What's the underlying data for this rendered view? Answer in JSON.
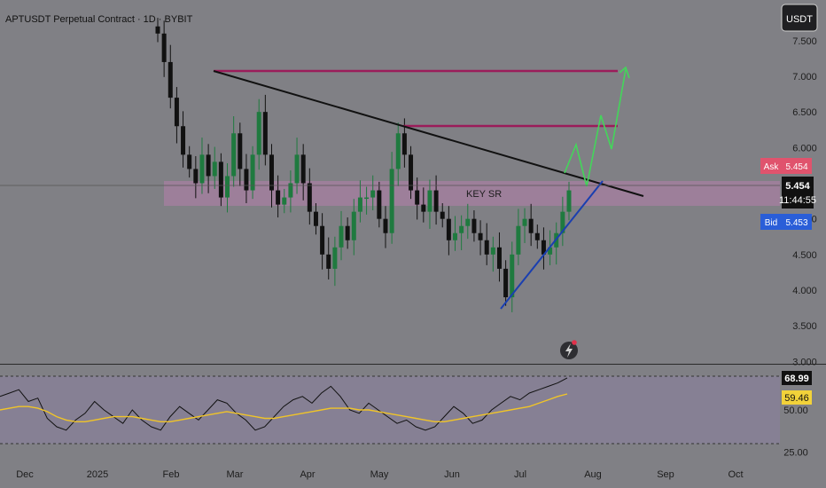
{
  "chart_data": {
    "type": "candlestick",
    "title": "APTUSDT Perpetual Contract · 1D · BYBIT",
    "currency_button": "USDT",
    "y_ticks": [
      "7.500",
      "7.000",
      "6.500",
      "6.000",
      "5.000",
      "4.500",
      "4.000",
      "3.500",
      "3.000"
    ],
    "x_ticks": [
      "Dec",
      "2025",
      "Feb",
      "Mar",
      "Apr",
      "May",
      "Jun",
      "Jul",
      "Aug",
      "Sep",
      "Oct"
    ],
    "price_range": [
      2.95,
      7.7
    ],
    "last_price": "5.454",
    "countdown": "11:44:55",
    "ask": {
      "label": "Ask",
      "value": "5.454"
    },
    "bid": {
      "label": "Bid",
      "value": "5.453"
    },
    "zone_label": "KEY SR",
    "zone": [
      5.05,
      5.4
    ],
    "resistance_levels": [
      7.05,
      6.28
    ],
    "descending_trendline": {
      "from": [
        7.05
      ],
      "to": [
        5.1
      ]
    },
    "rising_trendline": {
      "from": [
        3.75
      ],
      "to": [
        5.45
      ]
    },
    "closes": [
      7.6,
      7.2,
      6.7,
      6.3,
      5.9,
      5.7,
      5.5,
      5.9,
      5.6,
      5.8,
      5.3,
      5.6,
      6.2,
      5.7,
      5.4,
      5.9,
      6.5,
      5.9,
      5.4,
      5.2,
      5.3,
      5.5,
      5.9,
      5.5,
      5.1,
      4.9,
      4.5,
      4.3,
      4.6,
      4.9,
      4.7,
      5.1,
      5.3,
      5.3,
      5.4,
      5.0,
      4.8,
      5.7,
      6.2,
      5.9,
      5.4,
      5.2,
      5.1,
      5.4,
      5.1,
      5.0,
      4.7,
      4.8,
      4.9,
      5.0,
      4.8,
      4.7,
      4.5,
      4.6,
      4.3,
      3.9,
      4.5,
      4.9,
      5.0,
      4.8,
      4.7,
      4.5,
      4.6,
      4.8,
      5.1,
      5.4
    ],
    "rsi": {
      "ticks": [
        "25.00",
        "50.00"
      ],
      "value": "68.99",
      "ma_value": "59.46",
      "levels": [
        70,
        30
      ],
      "range": [
        20,
        80
      ],
      "values": [
        58,
        60,
        62,
        55,
        57,
        45,
        40,
        38,
        44,
        48,
        55,
        50,
        46,
        42,
        50,
        44,
        40,
        38,
        46,
        52,
        48,
        44,
        50,
        56,
        54,
        48,
        44,
        38,
        40,
        46,
        52,
        56,
        58,
        54,
        60,
        64,
        58,
        50,
        48,
        54,
        50,
        46,
        42,
        44,
        40,
        38,
        40,
        46,
        52,
        48,
        42,
        44,
        50,
        54,
        58,
        56,
        60,
        62,
        64,
        66,
        68.99
      ],
      "ma": [
        50,
        51,
        52,
        52,
        51,
        49,
        46,
        44,
        43,
        43,
        44,
        45,
        46,
        46,
        46,
        45,
        44,
        43,
        43,
        44,
        45,
        46,
        47,
        48,
        49,
        48,
        47,
        46,
        45,
        45,
        46,
        47,
        48,
        49,
        50,
        51,
        51,
        51,
        50,
        50,
        49,
        48,
        47,
        46,
        45,
        44,
        43,
        43,
        44,
        45,
        46,
        47,
        48,
        49,
        50,
        51,
        52,
        54,
        56,
        58,
        59.46
      ]
    }
  }
}
